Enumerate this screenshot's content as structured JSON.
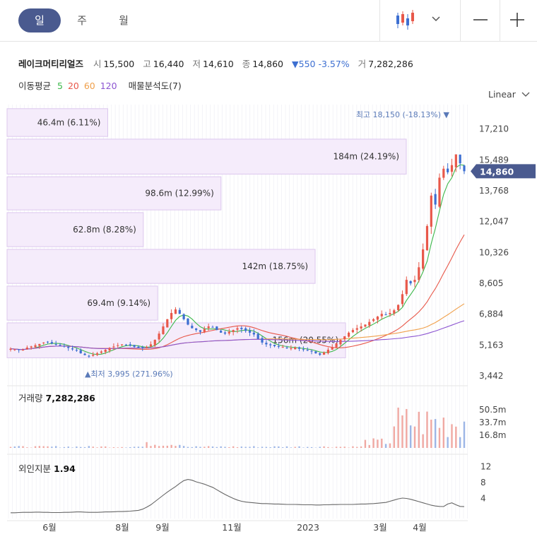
{
  "tabs": [
    "일",
    "주",
    "월"
  ],
  "info": {
    "name": "레이크머티리얼즈",
    "open_label": "시",
    "open": "15,500",
    "high_label": "고",
    "high": "16,440",
    "low_label": "저",
    "low": "14,610",
    "close_label": "종",
    "close": "14,860",
    "change": "▼550 -3.57%",
    "volume_label": "거",
    "volume": "7,282,286"
  },
  "moving_average": {
    "label": "이동평균",
    "periods": [
      "5",
      "20",
      "60",
      "120"
    ],
    "colors": [
      "#3cb84a",
      "#e8584a",
      "#f0a04b",
      "#8c55d1"
    ],
    "volume_profile_label": "매물분석도(7)"
  },
  "scale_label": "Linear",
  "colors": {
    "up": "#e8584a",
    "down": "#3d6fd1",
    "profile": "#f5ecfb",
    "profile_border": "#dcc7ee",
    "accent": "#4a5a8f"
  },
  "chart_data": {
    "type": "candlestick",
    "y_ticks": [
      "17,210",
      "15,489",
      "13,768",
      "12,047",
      "10,326",
      "8,605",
      "6,884",
      "5,163",
      "3,442"
    ],
    "ylim": [
      3442,
      18500
    ],
    "current_price": "14,860",
    "max_annotation": "최고 18,150 (-18.13%)",
    "min_annotation": "최저 3,995 (271.96%)",
    "volume_profile": [
      {
        "label": "46.4m (6.11%)",
        "low": 16800,
        "high": 18350
      },
      {
        "label": "184m (24.19%)",
        "low": 14700,
        "high": 16650
      },
      {
        "label": "98.6m (12.99%)",
        "low": 12700,
        "high": 14550
      },
      {
        "label": "62.8m (8.28%)",
        "low": 10650,
        "high": 12550
      },
      {
        "label": "142m (18.75%)",
        "low": 8600,
        "high": 10500
      },
      {
        "label": "69.4m (9.14%)",
        "low": 6550,
        "high": 8450
      },
      {
        "label": "156m (20.55%)",
        "low": 4450,
        "high": 6400
      }
    ],
    "x_labels": [
      "6월",
      "8월",
      "9월",
      "11월",
      "2023",
      "3월",
      "4월"
    ],
    "close_series": [
      4950,
      4920,
      4880,
      4900,
      5020,
      5080,
      5150,
      5220,
      5300,
      5320,
      5250,
      5200,
      5150,
      5080,
      5000,
      4920,
      4850,
      4700,
      4600,
      4550,
      4620,
      4700,
      4800,
      4900,
      5000,
      5080,
      5150,
      5200,
      5180,
      5120,
      5060,
      5000,
      4980,
      5050,
      5200,
      5450,
      5800,
      6200,
      6600,
      6950,
      7150,
      6900,
      6600,
      6300,
      6100,
      6000,
      5900,
      6050,
      6200,
      6150,
      6000,
      5850,
      5800,
      5900,
      6000,
      6100,
      6050,
      5950,
      5850,
      5750,
      5500,
      5300,
      5200,
      5150,
      5100,
      5080,
      5050,
      5000,
      4980,
      5020,
      4950,
      4900,
      4850,
      4800,
      4700,
      4620,
      4750,
      4900,
      5050,
      5250,
      5450,
      5650,
      5850,
      6000,
      6100,
      6200,
      6300,
      6450,
      6600,
      6750,
      6900,
      6850,
      6950,
      7100,
      7400,
      8000,
      8800,
      8600,
      8800,
      9500,
      10500,
      11800,
      13500,
      13000,
      14500,
      15000,
      14800,
      15200,
      15800,
      15300,
      14860
    ],
    "volume": {
      "label": "거래량",
      "value": "7,282,286",
      "ticks": [
        "50.5m",
        "33.7m",
        "16.8m"
      ],
      "max": 60
    },
    "foreign": {
      "label": "외인지분",
      "value": "1.94",
      "ticks": [
        "12",
        "8",
        "4"
      ],
      "ylim": [
        0,
        13
      ],
      "series": [
        0.4,
        0.4,
        0.45,
        0.5,
        0.5,
        0.5,
        0.55,
        0.55,
        0.5,
        0.5,
        0.45,
        0.45,
        0.45,
        0.5,
        0.5,
        0.55,
        0.6,
        0.6,
        0.55,
        0.5,
        0.5,
        0.5,
        0.55,
        0.6,
        0.6,
        0.65,
        0.7,
        0.7,
        0.75,
        0.8,
        0.9,
        1.0,
        1.3,
        1.8,
        2.4,
        3.2,
        4.0,
        4.8,
        5.6,
        6.3,
        7.0,
        7.8,
        8.5,
        8.8,
        8.6,
        8.2,
        7.9,
        7.6,
        7.2,
        6.8,
        6.2,
        5.6,
        5.0,
        4.5,
        4.0,
        3.6,
        3.3,
        3.1,
        3.0,
        2.9,
        2.8,
        2.7,
        2.7,
        2.65,
        2.6,
        2.6,
        2.55,
        2.5,
        2.5,
        2.5,
        2.45,
        2.4,
        2.4,
        2.4,
        2.35,
        2.35,
        2.4,
        2.4,
        2.45,
        2.45,
        2.5,
        2.5,
        2.5,
        2.5,
        2.55,
        2.6,
        2.6,
        2.65,
        2.7,
        2.8,
        2.9,
        3.0,
        3.3,
        3.6,
        3.9,
        4.1,
        4.0,
        3.8,
        3.5,
        3.2,
        2.9,
        2.6,
        2.3,
        2.1,
        2.0,
        1.95,
        2.6,
        2.9,
        2.4,
        2.0,
        1.94
      ]
    }
  }
}
